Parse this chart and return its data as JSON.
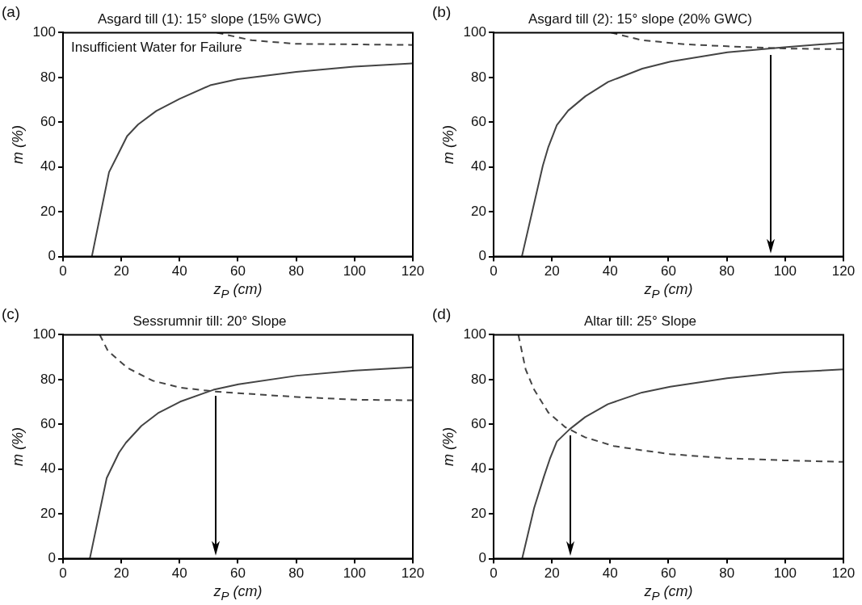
{
  "chart_data": [
    {
      "type": "line",
      "title": "Asgard till (1): 15° slope (15% GWC)",
      "xlabel": "z$_{P}$ (cm)",
      "ylabel": "m (%)",
      "xlim": [
        0,
        120
      ],
      "ylim": [
        0,
        100
      ],
      "xticks": [
        0,
        20,
        40,
        60,
        80,
        100,
        120
      ],
      "yticks": [
        0,
        20,
        40,
        60,
        80,
        100
      ],
      "grid": false,
      "marker": "none",
      "annotations": [
        "(a)",
        "Insufficient Water for Failure"
      ],
      "series": [
        {
          "color": "#444444",
          "line_style": "solid",
          "x": [
            9.9,
            15.8,
            19.2,
            22,
            25.8,
            32,
            40,
            50.5,
            60,
            80,
            99.8,
            120
          ],
          "values": [
            0,
            37.7,
            46.5,
            53.8,
            59,
            65,
            70.4,
            76.5,
            79.2,
            82.5,
            84.8,
            86.3
          ]
        },
        {
          "color": "#444444",
          "line_style": "dashed",
          "x": [
            52.8,
            64.7,
            80,
            120
          ],
          "values": [
            100,
            96.6,
            95,
            94.5
          ]
        }
      ]
    },
    {
      "type": "line",
      "title": "Asgard till (2): 15° slope (20% GWC)",
      "xlabel": "z$_{P}$ (cm)",
      "ylabel": "m (%)",
      "xlim": [
        0,
        120
      ],
      "ylim": [
        0,
        100
      ],
      "xticks": [
        0,
        20,
        40,
        60,
        80,
        100,
        120
      ],
      "yticks": [
        0,
        20,
        40,
        60,
        80,
        100
      ],
      "grid": false,
      "marker": "none",
      "annotations": [
        "(b)"
      ],
      "ref_lines": [
        {
          "axis": "x",
          "value": 95,
          "color": "#000000"
        }
      ],
      "series": [
        {
          "color": "#444444",
          "line_style": "solid",
          "x": [
            9.7,
            16.9,
            18.8,
            21.7,
            25.6,
            31.5,
            39.3,
            51,
            60.7,
            80.2,
            99.7,
            120
          ],
          "values": [
            0,
            40.6,
            49,
            58.7,
            65.2,
            71.6,
            78,
            83.9,
            87.1,
            91.2,
            93.5,
            95.5
          ]
        },
        {
          "color": "#444444",
          "line_style": "dashed",
          "x": [
            40.3,
            51,
            65.6,
            80.2,
            99.7,
            120
          ],
          "values": [
            100,
            96.6,
            94.8,
            93.9,
            92.9,
            92.6
          ]
        }
      ]
    },
    {
      "type": "line",
      "title": "Sessrumnir till: 20° Slope",
      "xlabel": "z$_{P}$ (cm)",
      "ylabel": "m (%)",
      "xlim": [
        0,
        120
      ],
      "ylim": [
        0,
        100
      ],
      "xticks": [
        0,
        20,
        40,
        60,
        80,
        100,
        120
      ],
      "yticks": [
        0,
        20,
        40,
        60,
        80,
        100
      ],
      "grid": false,
      "marker": "none",
      "annotations": [
        "(c)"
      ],
      "ref_lines": [
        {
          "axis": "x",
          "value": 52.4,
          "color": "#000000"
        }
      ],
      "series": [
        {
          "color": "#444444",
          "line_style": "solid",
          "x": [
            9.2,
            15,
            19.2,
            21.6,
            26.9,
            32.6,
            40.2,
            51.6,
            60.2,
            80.2,
            100.2,
            120
          ],
          "values": [
            0,
            36,
            47.3,
            51.8,
            59.3,
            65,
            70.1,
            75.4,
            77.9,
            81.7,
            84,
            85.5
          ]
        },
        {
          "color": "#444444",
          "line_style": "dashed",
          "x": [
            12.6,
            15.4,
            22.1,
            30.7,
            40.2,
            51.6,
            60.2,
            80.2,
            100.2,
            120
          ],
          "values": [
            100,
            92.8,
            85.2,
            79.5,
            76.4,
            74.7,
            73.9,
            72.2,
            71,
            70.7
          ]
        }
      ]
    },
    {
      "type": "line",
      "title": "Altar till: 25° Slope",
      "xlabel": "z$_{P}$ (cm)",
      "ylabel": "m (%)",
      "xlim": [
        0,
        120
      ],
      "ylim": [
        0,
        100
      ],
      "xticks": [
        0,
        20,
        40,
        60,
        80,
        100,
        120
      ],
      "yticks": [
        0,
        20,
        40,
        60,
        80,
        100
      ],
      "grid": false,
      "marker": "none",
      "annotations": [
        "(d)"
      ],
      "ref_lines": [
        {
          "axis": "x",
          "value": 26.4,
          "color": "#000000"
        }
      ],
      "series": [
        {
          "color": "#444444",
          "line_style": "solid",
          "x": [
            9.8,
            13.9,
            17.3,
            19.3,
            21.7,
            26.1,
            31.4,
            39.2,
            50.9,
            60.6,
            80.1,
            99.6,
            120
          ],
          "values": [
            0,
            22.6,
            36.8,
            44.5,
            52.3,
            57.8,
            63.2,
            69,
            74.2,
            76.8,
            80.6,
            83.2,
            84.5
          ]
        },
        {
          "color": "#444444",
          "line_style": "dashed",
          "x": [
            8.5,
            11,
            13.9,
            18.8,
            24.6,
            31.4,
            41.2,
            50.9,
            60.6,
            80.1,
            99.6,
            120
          ],
          "values": [
            100,
            84.5,
            75.5,
            65.2,
            58.7,
            54.2,
            50.3,
            48.4,
            46.7,
            44.8,
            43.9,
            43.2
          ]
        }
      ]
    }
  ]
}
